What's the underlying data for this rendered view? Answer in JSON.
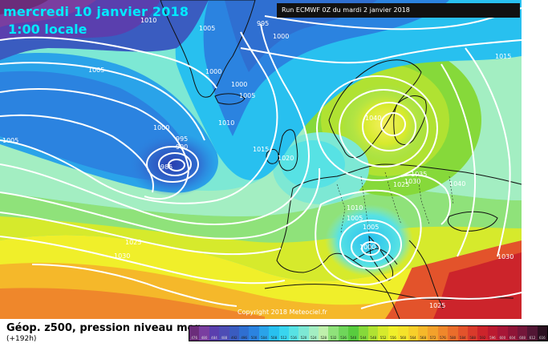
{
  "header": {
    "date": "mercredi 10 janvier 2018",
    "time": "1:00 locale",
    "run": "Run ECMWF 0Z du mardi 2 janvier 2018"
  },
  "footer": {
    "parameter": "Géop. z500, pression niveau mer",
    "lead": "(+192h)",
    "copyright": "Copyright 2018 Meteociel.fr"
  },
  "colorbar": {
    "values": [
      "476",
      "480",
      "484",
      "488",
      "492",
      "496",
      "500",
      "504",
      "508",
      "512",
      "516",
      "520",
      "524",
      "528",
      "532",
      "536",
      "540",
      "544",
      "548",
      "552",
      "556",
      "560",
      "564",
      "568",
      "572",
      "576",
      "580",
      "584",
      "588",
      "592",
      "596",
      "600",
      "604",
      "608",
      "612",
      "616"
    ],
    "colors": [
      "#6b2c7a",
      "#7a3ea0",
      "#5a3fae",
      "#4d4db5",
      "#3a5cc0",
      "#2f6fd1",
      "#2b83e0",
      "#2aa3e9",
      "#28c0ef",
      "#39d5ef",
      "#57e2e4",
      "#7de8d4",
      "#a3eec2",
      "#bff0ab",
      "#8fe27a",
      "#6fd65a",
      "#58cc3e",
      "#86d93a",
      "#b0e232",
      "#d6ea2c",
      "#f0ef2a",
      "#f5e22a",
      "#f7cf2a",
      "#f5b82a",
      "#f3a12b",
      "#ef872b",
      "#ea6d2b",
      "#e3532b",
      "#d93a2b",
      "#cc242b",
      "#bb1a30",
      "#a81637",
      "#8f1437",
      "#74163a",
      "#521634",
      "#2b1020"
    ]
  },
  "map": {
    "isobar_labels": [
      "1010",
      "1005",
      "995",
      "1000",
      "1005",
      "1000",
      "1000",
      "1005",
      "1010",
      "1000",
      "995",
      "990",
      "985",
      "1015",
      "1020",
      "1005",
      "1040",
      "1035",
      "1030",
      "1025",
      "1040",
      "1010",
      "1005",
      "1005",
      "1000",
      "1025",
      "1030",
      "1015",
      "1025",
      "1030"
    ],
    "geo_labels": []
  }
}
